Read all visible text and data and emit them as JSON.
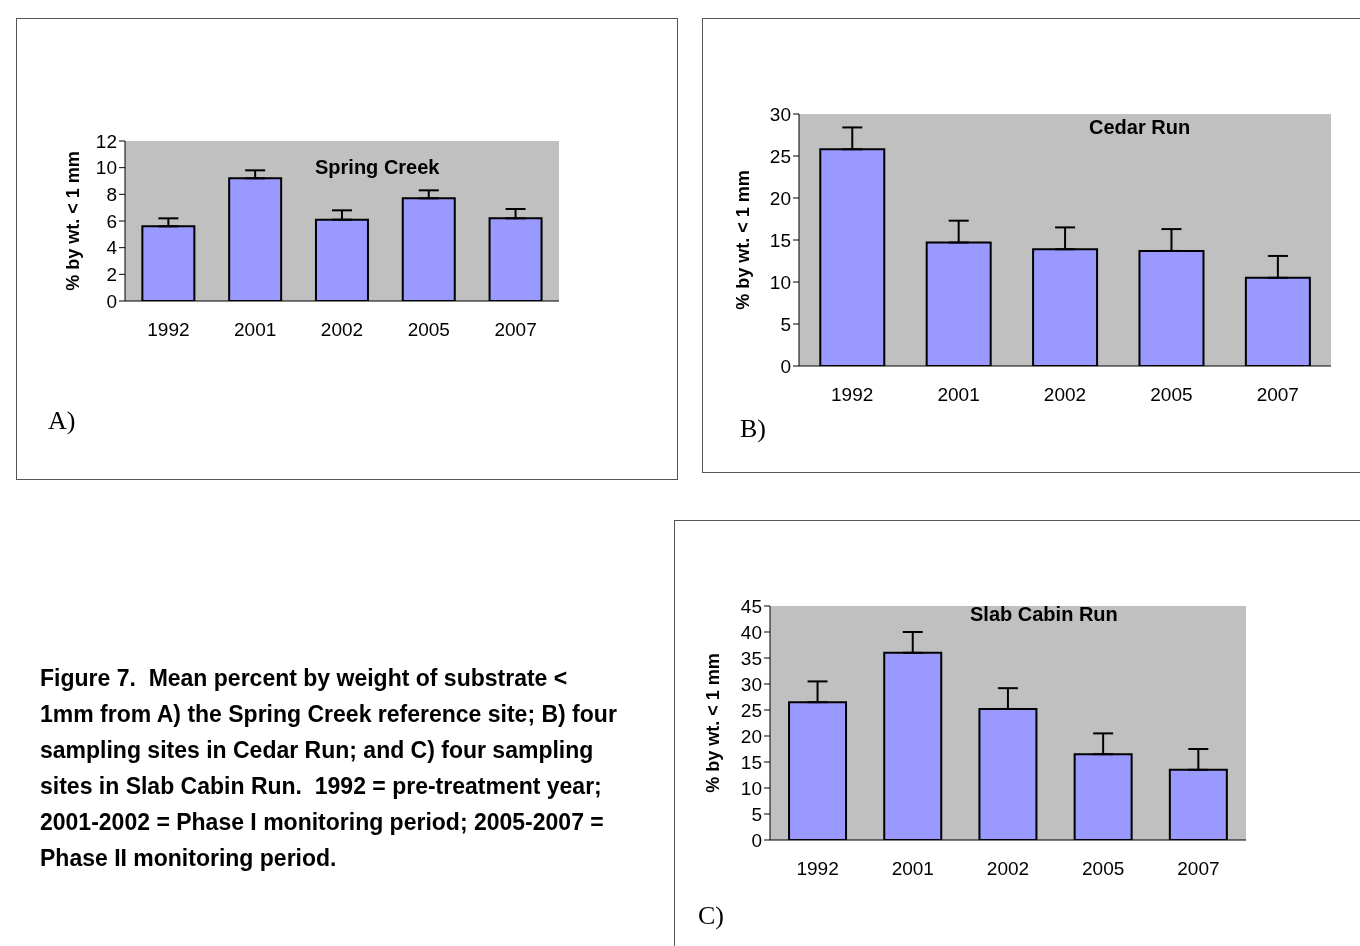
{
  "chart_data": [
    {
      "type": "bar",
      "title": "Spring Creek",
      "ylabel": "% by wt. < 1 mm",
      "categories": [
        "1992",
        "2001",
        "2002",
        "2005",
        "2007"
      ],
      "values": [
        5.6,
        9.2,
        6.1,
        7.7,
        6.2
      ],
      "errors": [
        [
          5.6,
          6.2
        ],
        [
          9.2,
          9.8
        ],
        [
          6.1,
          6.8
        ],
        [
          7.7,
          8.3
        ],
        [
          6.2,
          6.9
        ]
      ],
      "color": "#9999ff",
      "ylim": [
        0,
        12
      ],
      "yticks": [
        0,
        2,
        4,
        6,
        8,
        10,
        12
      ],
      "annotations": [
        "A)"
      ]
    },
    {
      "type": "bar",
      "title": "Cedar Run",
      "ylabel": "% by wt. < 1 mm",
      "categories": [
        "1992",
        "2001",
        "2002",
        "2005",
        "2007"
      ],
      "values": [
        25.8,
        14.7,
        13.9,
        13.7,
        10.5
      ],
      "errors": [
        [
          25.8,
          28.4
        ],
        [
          14.7,
          17.3
        ],
        [
          13.9,
          16.5
        ],
        [
          13.7,
          16.3
        ],
        [
          10.5,
          13.1
        ]
      ],
      "color": "#9999ff",
      "ylim": [
        0,
        30
      ],
      "yticks": [
        0,
        5,
        10,
        15,
        20,
        25,
        30
      ],
      "annotations": [
        "B)"
      ]
    },
    {
      "type": "other",
      "title": "Figure 7.  Mean percent by weight of substrate < 1mm from A) the Spring Creek reference site; B) four sampling sites in Cedar Run; and C) four sampling sites in Slab Cabin Run.  1992 = pre-treatment year; 2001-2002 = Phase I monitoring period; 2005-2007 = Phase II monitoring period."
    },
    {
      "type": "bar",
      "title": "Slab Cabin Run",
      "ylabel": "% by wt. < 1 mm",
      "categories": [
        "1992",
        "2001",
        "2002",
        "2005",
        "2007"
      ],
      "values": [
        26.5,
        36,
        25.2,
        16.5,
        13.5
      ],
      "errors": [
        [
          26.5,
          30.5
        ],
        [
          36,
          40
        ],
        [
          25.2,
          29.2
        ],
        [
          16.5,
          20.5
        ],
        [
          13.5,
          17.5
        ]
      ],
      "color": "#9999ff",
      "ylim": [
        0,
        45
      ],
      "yticks": [
        0,
        5,
        10,
        15,
        20,
        25,
        30,
        35,
        40,
        45
      ],
      "annotations": [
        "C)"
      ]
    }
  ]
}
